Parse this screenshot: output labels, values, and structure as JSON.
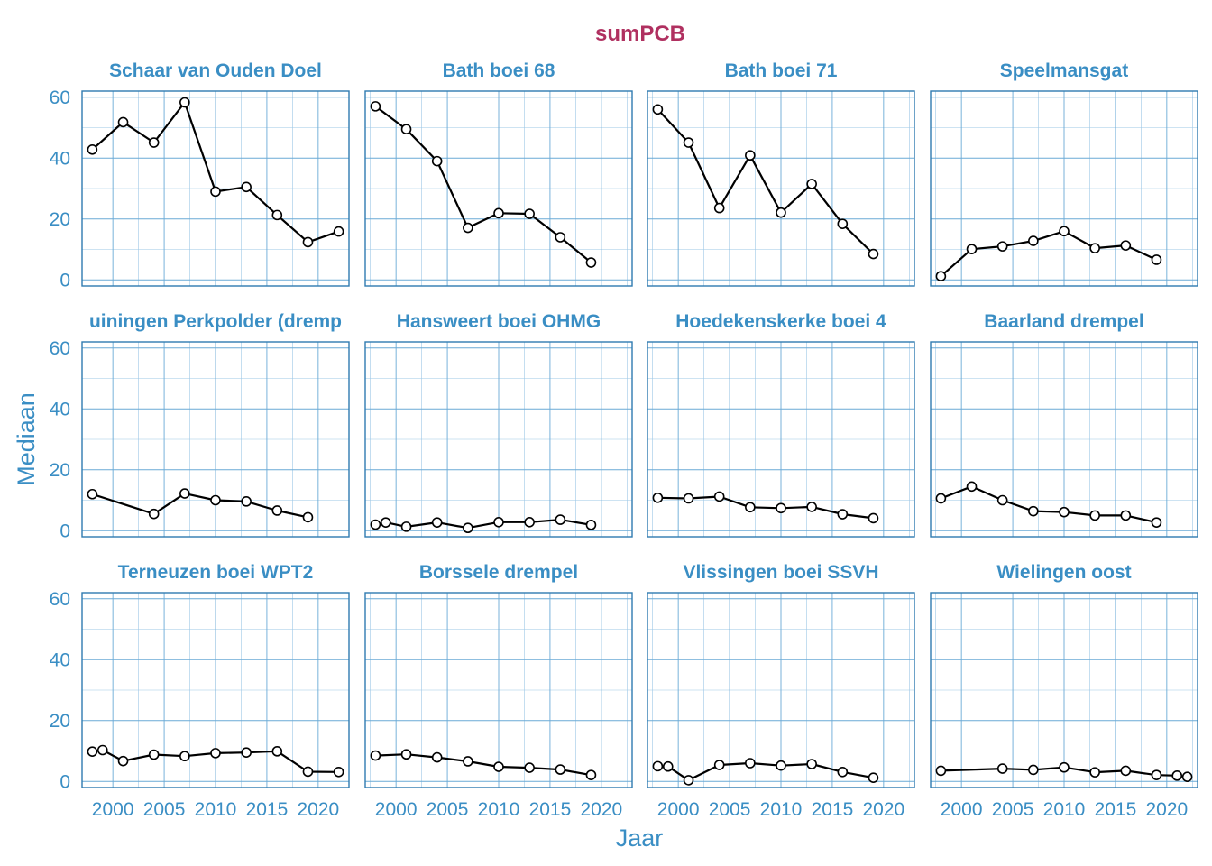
{
  "chart_data": {
    "type": "line",
    "title": "sumPCB",
    "xlabel": "Jaar",
    "ylabel": "Mediaan",
    "xlim": [
      1997,
      2023
    ],
    "ylim": [
      -2,
      62
    ],
    "x_ticks": [
      "2000",
      "2005",
      "2010",
      "2015",
      "2020"
    ],
    "y_ticks": [
      "0",
      "20",
      "40",
      "60"
    ],
    "grid": true,
    "colors": {
      "title": "#b03060",
      "text": "#3a8ec4",
      "line": "#000000",
      "point_fill": "#ffffff"
    },
    "panels": [
      {
        "name": "Schaar van Ouden Doel",
        "x": [
          1998,
          2001,
          2004,
          2007,
          2010,
          2013,
          2016,
          2019,
          2022
        ],
        "values": [
          42.8,
          51.8,
          45.1,
          58.3,
          29.0,
          30.5,
          21.3,
          12.4,
          15.9
        ]
      },
      {
        "name": "Bath boei 68",
        "x": [
          1998,
          2001,
          2004,
          2007,
          2010,
          2013,
          2016,
          2019
        ],
        "values": [
          57.0,
          49.5,
          39.0,
          17.1,
          21.9,
          21.7,
          14.0,
          5.7
        ]
      },
      {
        "name": "Bath boei 71",
        "x": [
          1998,
          2001,
          2004,
          2007,
          2010,
          2013,
          2016,
          2019
        ],
        "values": [
          56.0,
          45.1,
          23.6,
          40.9,
          22.1,
          31.5,
          18.4,
          8.5
        ]
      },
      {
        "name": "Speelmansgat",
        "x": [
          1998,
          2001,
          2004,
          2007,
          2010,
          2013,
          2016,
          2019
        ],
        "values": [
          1.2,
          10.1,
          11.0,
          12.8,
          16.0,
          10.4,
          11.3,
          6.6
        ]
      },
      {
        "name": "Hansweert-Ossenisse/Kruiningen Perkpolder (drempel)",
        "display": "uiningen Perkpolder (dremp",
        "x": [
          1998,
          2004,
          2007,
          2010,
          2013,
          2016,
          2019
        ],
        "values": [
          12.0,
          5.5,
          12.2,
          10.0,
          9.6,
          6.6,
          4.4
        ]
      },
      {
        "name": "Hansweert boei OHMG",
        "x": [
          1998,
          1999,
          2001,
          2004,
          2007,
          2010,
          2013,
          2016,
          2019
        ],
        "values": [
          2.0,
          2.7,
          1.3,
          2.7,
          0.9,
          2.8,
          2.8,
          3.6,
          1.9
        ]
      },
      {
        "name": "Hoedekenskerke boei 4",
        "x": [
          1998,
          2001,
          2004,
          2007,
          2010,
          2013,
          2016,
          2019
        ],
        "values": [
          10.8,
          10.6,
          11.2,
          7.7,
          7.4,
          7.8,
          5.4,
          4.1
        ]
      },
      {
        "name": "Baarland drempel",
        "x": [
          1998,
          2001,
          2004,
          2007,
          2010,
          2013,
          2016,
          2019
        ],
        "values": [
          10.6,
          14.5,
          10.0,
          6.4,
          6.1,
          5.0,
          5.0,
          2.7
        ]
      },
      {
        "name": "Terneuzen boei WPT2",
        "x": [
          1998,
          1999,
          2001,
          2004,
          2007,
          2010,
          2013,
          2016,
          2019,
          2022
        ],
        "values": [
          9.8,
          10.3,
          6.7,
          8.8,
          8.3,
          9.3,
          9.5,
          9.9,
          3.2,
          3.1
        ]
      },
      {
        "name": "Borssele drempel",
        "x": [
          1998,
          2001,
          2004,
          2007,
          2010,
          2013,
          2016,
          2019
        ],
        "values": [
          8.5,
          8.9,
          7.9,
          6.6,
          4.8,
          4.5,
          3.9,
          2.1
        ]
      },
      {
        "name": "Vlissingen boei SSVH",
        "x": [
          1998,
          1999,
          2001,
          2004,
          2007,
          2010,
          2013,
          2016,
          2019
        ],
        "values": [
          5.0,
          4.9,
          0.4,
          5.4,
          6.0,
          5.2,
          5.7,
          3.1,
          1.2
        ]
      },
      {
        "name": "Wielingen oost",
        "x": [
          1998,
          2004,
          2007,
          2010,
          2013,
          2016,
          2019,
          2021,
          2022
        ],
        "values": [
          3.5,
          4.2,
          3.8,
          4.6,
          3.0,
          3.5,
          2.1,
          1.9,
          1.5
        ]
      }
    ]
  }
}
